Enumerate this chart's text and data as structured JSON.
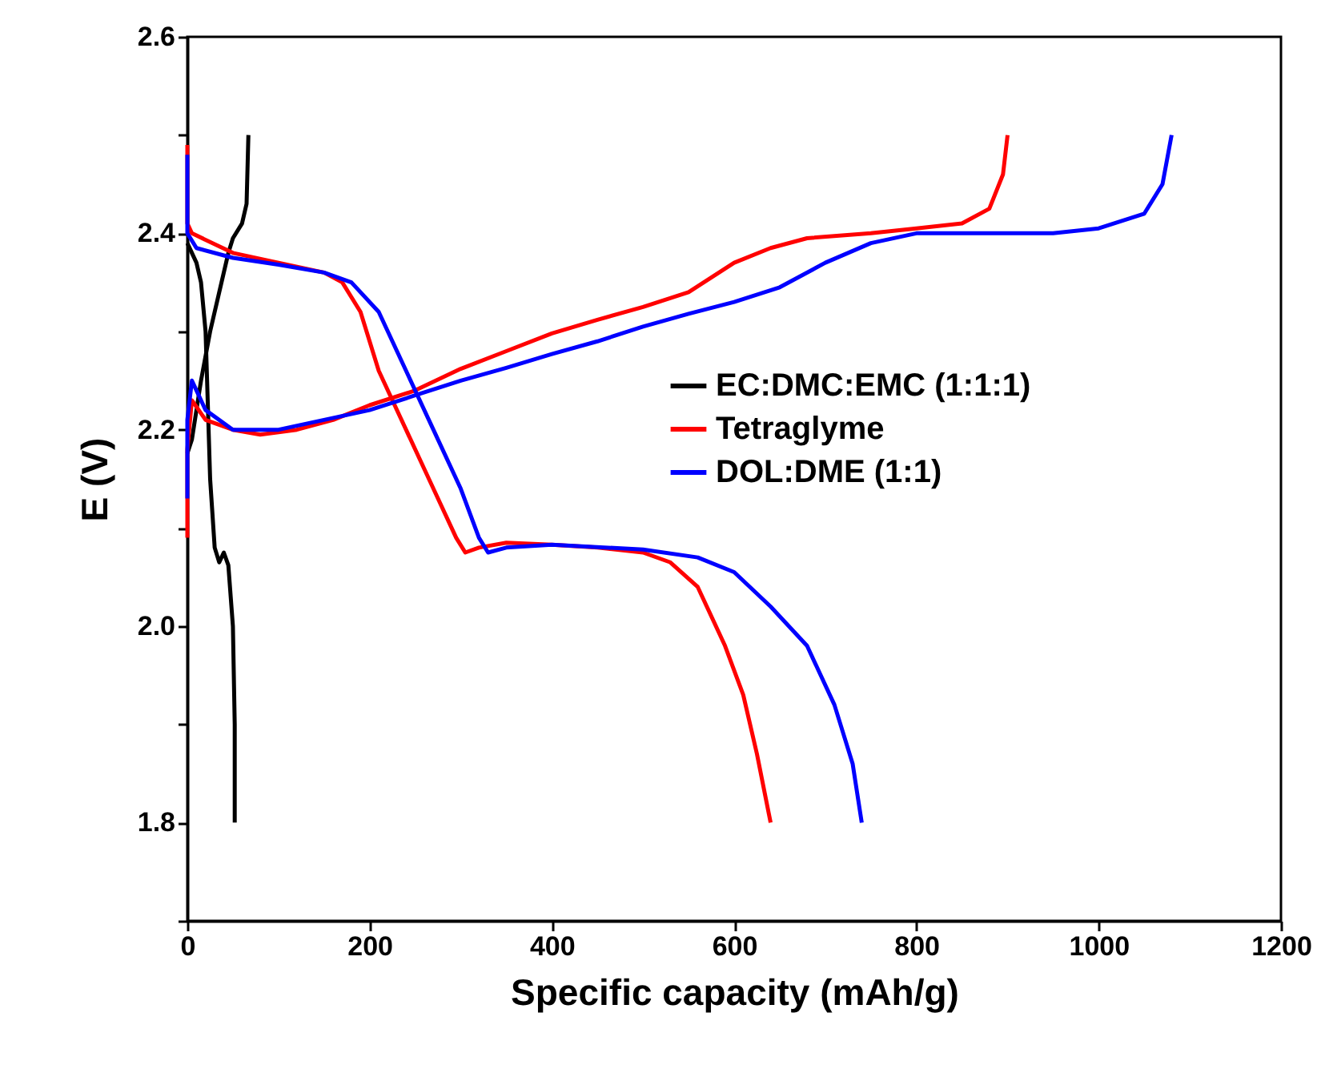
{
  "chart_data": {
    "type": "line",
    "xlabel": "Specific capacity (mAh/g)",
    "ylabel": "E (V)",
    "xlim": [
      0,
      1200
    ],
    "ylim": [
      1.7,
      2.6
    ],
    "xticks": [
      0,
      200,
      400,
      600,
      800,
      1000,
      1200
    ],
    "yticks": [
      {
        "value": 1.7,
        "label": null
      },
      1.8,
      {
        "value": 1.9,
        "label": null
      },
      {
        "value": 2.0,
        "label": "2.0"
      },
      {
        "value": 2.1,
        "label": null
      },
      2.2,
      {
        "value": 2.3,
        "label": null
      },
      2.4,
      {
        "value": 2.5,
        "label": null
      },
      2.6
    ],
    "grid": false,
    "legend": "right",
    "line_style": "solid",
    "marker": "none",
    "series": [
      {
        "name": "EC:DMC:EMC (1:1:1)",
        "color": "#000000",
        "x": [
          0,
          10,
          15,
          20,
          25,
          30,
          35,
          40,
          45,
          50,
          52,
          52
        ],
        "values": [
          2.39,
          2.37,
          2.35,
          2.3,
          2.15,
          2.08,
          2.065,
          2.075,
          2.062,
          2.0,
          1.9,
          1.8
        ]
      },
      {
        "color": "#000000",
        "x": [
          0,
          5,
          15,
          25,
          35,
          45,
          50,
          60,
          65,
          67
        ],
        "values": [
          2.176,
          2.19,
          2.25,
          2.3,
          2.34,
          2.38,
          2.395,
          2.41,
          2.43,
          2.5
        ]
      },
      {
        "name": "Tetraglyme",
        "color": "#ff0000",
        "x": [
          0,
          0,
          5,
          50,
          100,
          150,
          170,
          190,
          210,
          240,
          270,
          295,
          305,
          320,
          350,
          400,
          450,
          500,
          530,
          560,
          590,
          610,
          625,
          640
        ],
        "values": [
          2.49,
          2.41,
          2.4,
          2.38,
          2.37,
          2.36,
          2.35,
          2.32,
          2.26,
          2.2,
          2.14,
          2.09,
          2.075,
          2.08,
          2.085,
          2.083,
          2.08,
          2.075,
          2.065,
          2.04,
          1.98,
          1.93,
          1.87,
          1.8
        ]
      },
      {
        "color": "#ff0000",
        "x": [
          0,
          0,
          5,
          20,
          50,
          80,
          120,
          160,
          200,
          250,
          300,
          350,
          400,
          450,
          500,
          550,
          600,
          640,
          680,
          750,
          800,
          850,
          880,
          895,
          900
        ],
        "values": [
          2.09,
          2.18,
          2.23,
          2.21,
          2.2,
          2.195,
          2.2,
          2.21,
          2.225,
          2.24,
          2.262,
          2.28,
          2.298,
          2.312,
          2.325,
          2.34,
          2.37,
          2.385,
          2.395,
          2.4,
          2.405,
          2.41,
          2.425,
          2.46,
          2.5
        ]
      },
      {
        "name": "DOL:DME (1:1)",
        "color": "#0000ff",
        "x": [
          0,
          0,
          10,
          50,
          100,
          150,
          180,
          210,
          240,
          270,
          300,
          320,
          330,
          350,
          400,
          500,
          560,
          600,
          640,
          680,
          710,
          730,
          740
        ],
        "values": [
          2.48,
          2.4,
          2.385,
          2.375,
          2.368,
          2.36,
          2.35,
          2.32,
          2.26,
          2.2,
          2.14,
          2.09,
          2.075,
          2.08,
          2.083,
          2.078,
          2.07,
          2.055,
          2.02,
          1.98,
          1.92,
          1.86,
          1.8
        ]
      },
      {
        "color": "#0000ff",
        "x": [
          0,
          0,
          5,
          20,
          50,
          100,
          150,
          200,
          250,
          300,
          350,
          400,
          450,
          500,
          550,
          600,
          650,
          700,
          750,
          800,
          900,
          950,
          1000,
          1050,
          1070,
          1080
        ],
        "values": [
          2.13,
          2.21,
          2.25,
          2.22,
          2.2,
          2.2,
          2.21,
          2.22,
          2.235,
          2.25,
          2.263,
          2.277,
          2.29,
          2.305,
          2.318,
          2.33,
          2.345,
          2.37,
          2.39,
          2.4,
          2.4,
          2.4,
          2.405,
          2.42,
          2.45,
          2.5
        ]
      }
    ]
  }
}
